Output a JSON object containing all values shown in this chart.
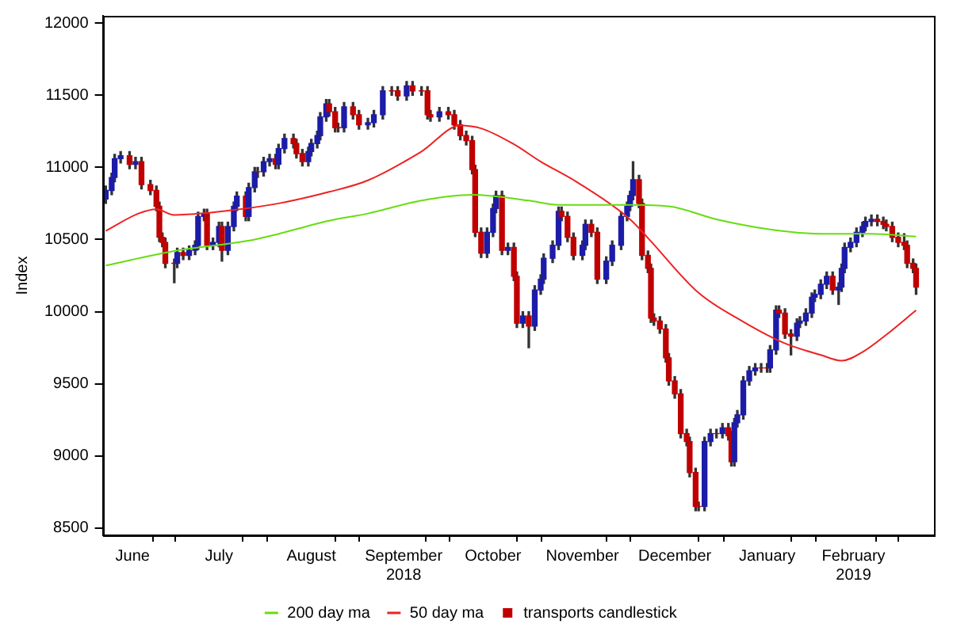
{
  "chart_data": {
    "type": "candlestick",
    "ylabel": "Index",
    "legend": "bottom",
    "grid": false,
    "xlim": [
      "2018-06-07",
      "2019-03-13"
    ],
    "ylim": [
      8450,
      12050
    ],
    "yticks": [
      8500,
      9000,
      9500,
      10000,
      10500,
      11000,
      11500,
      12000
    ],
    "xticks": [
      {
        "value": "2018-06-17",
        "label": "June"
      },
      {
        "value": "2018-07-01",
        "label": null
      },
      {
        "value": "2018-07-16",
        "label": "July"
      },
      {
        "value": "2018-08-01",
        "label": null
      },
      {
        "value": "2018-08-16",
        "label": "August"
      },
      {
        "value": "2018-09-01",
        "label": null
      },
      {
        "value": "2018-09-16",
        "label": "September\n2018"
      },
      {
        "value": "2018-10-01",
        "label": null
      },
      {
        "value": "2018-10-16",
        "label": "October"
      },
      {
        "value": "2018-11-01",
        "label": null
      },
      {
        "value": "2018-11-15",
        "label": "November"
      },
      {
        "value": "2018-12-01",
        "label": null
      },
      {
        "value": "2018-12-16",
        "label": "December"
      },
      {
        "value": "2019-01-01",
        "label": null
      },
      {
        "value": "2019-01-16",
        "label": "January"
      },
      {
        "value": "2019-02-01",
        "label": null
      },
      {
        "value": "2019-02-14",
        "label": "February\n2019"
      },
      {
        "value": "2019-03-01",
        "label": null
      }
    ],
    "series": [
      {
        "name": "200 day ma",
        "type": "line",
        "color": "#66dd11",
        "x": [
          "2018-06-08",
          "2018-07-01",
          "2018-07-28",
          "2018-08-22",
          "2018-09-04",
          "2018-09-22",
          "2018-10-09",
          "2018-10-28",
          "2018-11-07",
          "2018-12-01",
          "2018-12-14",
          "2018-12-30",
          "2019-01-17",
          "2019-02-03",
          "2019-02-20",
          "2019-03-07"
        ],
        "values": [
          10320,
          10420,
          10500,
          10630,
          10680,
          10770,
          10810,
          10770,
          10740,
          10740,
          10730,
          10640,
          10570,
          10540,
          10540,
          10520
        ]
      },
      {
        "name": "50 day ma",
        "type": "line",
        "color": "#ee2222",
        "x": [
          "2018-06-08",
          "2018-06-19",
          "2018-06-25",
          "2018-07-01",
          "2018-07-19",
          "2018-08-05",
          "2018-08-22",
          "2018-09-04",
          "2018-09-22",
          "2018-10-05",
          "2018-10-12",
          "2018-10-23",
          "2018-11-01",
          "2018-11-13",
          "2018-12-01",
          "2018-12-07",
          "2018-12-24",
          "2019-01-08",
          "2019-01-22",
          "2019-02-03",
          "2019-02-10",
          "2019-02-17",
          "2019-02-25",
          "2019-03-07"
        ],
        "values": [
          10560,
          10680,
          10710,
          10670,
          10700,
          10750,
          10830,
          10910,
          11110,
          11290,
          11270,
          11160,
          11040,
          10900,
          10640,
          10510,
          10130,
          9930,
          9780,
          9700,
          9660,
          9720,
          9840,
          10010
        ]
      },
      {
        "name": "transports candlestick",
        "color": "#c00000",
        "x": [
          "2018-06-08",
          "2018-06-10",
          "2018-06-11",
          "2018-06-13",
          "2018-06-16",
          "2018-06-18",
          "2018-06-20",
          "2018-06-23",
          "2018-06-25",
          "2018-06-26",
          "2018-06-27",
          "2018-06-28",
          "2018-07-01",
          "2018-07-02",
          "2018-07-04",
          "2018-07-06",
          "2018-07-08",
          "2018-07-09",
          "2018-07-11",
          "2018-07-12",
          "2018-07-14",
          "2018-07-16",
          "2018-07-17",
          "2018-07-19",
          "2018-07-21",
          "2018-07-22",
          "2018-07-25",
          "2018-07-26",
          "2018-07-28",
          "2018-07-29",
          "2018-07-31",
          "2018-08-02",
          "2018-08-04",
          "2018-08-05",
          "2018-08-07",
          "2018-08-10",
          "2018-08-11",
          "2018-08-13",
          "2018-08-15",
          "2018-08-16",
          "2018-08-18",
          "2018-08-19",
          "2018-08-21",
          "2018-08-22",
          "2018-08-24",
          "2018-08-25",
          "2018-08-27",
          "2018-08-30",
          "2018-09-01",
          "2018-09-04",
          "2018-09-06",
          "2018-09-09",
          "2018-09-12",
          "2018-09-14",
          "2018-09-17",
          "2018-09-19",
          "2018-09-22",
          "2018-09-24",
          "2018-09-25",
          "2018-09-28",
          "2018-10-01",
          "2018-10-03",
          "2018-10-05",
          "2018-10-07",
          "2018-10-09",
          "2018-10-10",
          "2018-10-12",
          "2018-10-14",
          "2018-10-16",
          "2018-10-17",
          "2018-10-19",
          "2018-10-21",
          "2018-10-23",
          "2018-10-24",
          "2018-10-26",
          "2018-10-28",
          "2018-10-30",
          "2018-11-01",
          "2018-11-02",
          "2018-11-05",
          "2018-11-07",
          "2018-11-08",
          "2018-11-10",
          "2018-11-12",
          "2018-11-15",
          "2018-11-16",
          "2018-11-18",
          "2018-11-20",
          "2018-11-23",
          "2018-11-25",
          "2018-11-28",
          "2018-11-30",
          "2018-12-01",
          "2018-12-02",
          "2018-12-04",
          "2018-12-05",
          "2018-12-07",
          "2018-12-08",
          "2018-12-09",
          "2018-12-11",
          "2018-12-13",
          "2018-12-14",
          "2018-12-16",
          "2018-12-18",
          "2018-12-20",
          "2018-12-21",
          "2018-12-23",
          "2018-12-24",
          "2018-12-26",
          "2018-12-28",
          "2018-12-30",
          "2019-01-01",
          "2019-01-03",
          "2019-01-04",
          "2019-01-05",
          "2019-01-06",
          "2019-01-08",
          "2019-01-10",
          "2019-01-12",
          "2019-01-14",
          "2019-01-16",
          "2019-01-17",
          "2019-01-19",
          "2019-01-20",
          "2019-01-22",
          "2019-01-24",
          "2019-01-26",
          "2019-01-27",
          "2019-01-29",
          "2019-01-31",
          "2019-02-01",
          "2019-02-03",
          "2019-02-05",
          "2019-02-07",
          "2019-02-09",
          "2019-02-10",
          "2019-02-11",
          "2019-02-13",
          "2019-02-15",
          "2019-02-17",
          "2019-02-18",
          "2019-02-20",
          "2019-02-22",
          "2019-02-24",
          "2019-02-25",
          "2019-02-27",
          "2019-03-01",
          "2019-03-03",
          "2019-03-04",
          "2019-03-06",
          "2019-03-07"
        ],
        "ohlc": [
          [
            10780,
            10870,
            10750,
            10840
          ],
          [
            10840,
            10960,
            10810,
            10930
          ],
          [
            10930,
            11090,
            10900,
            11060
          ],
          [
            11060,
            11110,
            11030,
            11080
          ],
          [
            11080,
            11110,
            10990,
            11020
          ],
          [
            11020,
            11070,
            10990,
            11040
          ],
          [
            11040,
            11070,
            10850,
            10880
          ],
          [
            10880,
            10910,
            10810,
            10840
          ],
          [
            10840,
            10870,
            10700,
            10730
          ],
          [
            10730,
            10760,
            10485,
            10515
          ],
          [
            10515,
            10545,
            10450,
            10480
          ],
          [
            10480,
            10510,
            10305,
            10335
          ],
          [
            10335,
            10365,
            10200,
            10335
          ],
          [
            10335,
            10440,
            10305,
            10410
          ],
          [
            10410,
            10440,
            10360,
            10390
          ],
          [
            10390,
            10455,
            10360,
            10425
          ],
          [
            10425,
            10490,
            10395,
            10460
          ],
          [
            10460,
            10690,
            10430,
            10660
          ],
          [
            10660,
            10710,
            10630,
            10680
          ],
          [
            10680,
            10710,
            10430,
            10460
          ],
          [
            10460,
            10510,
            10430,
            10480
          ],
          [
            10480,
            10620,
            10450,
            10590
          ],
          [
            10590,
            10620,
            10350,
            10425
          ],
          [
            10425,
            10620,
            10395,
            10590
          ],
          [
            10590,
            10760,
            10560,
            10730
          ],
          [
            10730,
            10830,
            10700,
            10800
          ],
          [
            10800,
            10830,
            10630,
            10660
          ],
          [
            10660,
            10890,
            10630,
            10860
          ],
          [
            10860,
            11000,
            10830,
            10970
          ],
          [
            10970,
            11000,
            10930,
            10970
          ],
          [
            10970,
            11070,
            10940,
            11040
          ],
          [
            11040,
            11090,
            11010,
            11060
          ],
          [
            11060,
            11090,
            10990,
            11020
          ],
          [
            11020,
            11160,
            10990,
            11130
          ],
          [
            11130,
            11230,
            11100,
            11200
          ],
          [
            11200,
            11230,
            11135,
            11165
          ],
          [
            11165,
            11195,
            11065,
            11095
          ],
          [
            11095,
            11125,
            11010,
            11040
          ],
          [
            11040,
            11140,
            11010,
            11110
          ],
          [
            11110,
            11195,
            11080,
            11165
          ],
          [
            11165,
            11250,
            11135,
            11220
          ],
          [
            11220,
            11380,
            11190,
            11350
          ],
          [
            11350,
            11470,
            11320,
            11440
          ],
          [
            11440,
            11470,
            11355,
            11385
          ],
          [
            11385,
            11415,
            11245,
            11275
          ],
          [
            11275,
            11305,
            11245,
            11275
          ],
          [
            11275,
            11450,
            11245,
            11420
          ],
          [
            11420,
            11450,
            11335,
            11365
          ],
          [
            11365,
            11395,
            11265,
            11295
          ],
          [
            11295,
            11340,
            11265,
            11310
          ],
          [
            11310,
            11395,
            11280,
            11365
          ],
          [
            11365,
            11560,
            11335,
            11530
          ],
          [
            11530,
            11560,
            11500,
            11530
          ],
          [
            11530,
            11560,
            11465,
            11495
          ],
          [
            11495,
            11595,
            11465,
            11565
          ],
          [
            11565,
            11595,
            11500,
            11530
          ],
          [
            11530,
            11560,
            11500,
            11530
          ],
          [
            11530,
            11560,
            11335,
            11365
          ],
          [
            11365,
            11395,
            11320,
            11350
          ],
          [
            11350,
            11415,
            11320,
            11385
          ],
          [
            11385,
            11415,
            11335,
            11365
          ],
          [
            11365,
            11395,
            11265,
            11295
          ],
          [
            11295,
            11325,
            11190,
            11220
          ],
          [
            11220,
            11250,
            11155,
            11185
          ],
          [
            11185,
            11215,
            10955,
            10985
          ],
          [
            10985,
            11015,
            10520,
            10550
          ],
          [
            10550,
            10580,
            10375,
            10405
          ],
          [
            10405,
            10580,
            10375,
            10550
          ],
          [
            10550,
            10745,
            10520,
            10715
          ],
          [
            10715,
            10835,
            10685,
            10805
          ],
          [
            10805,
            10835,
            10395,
            10425
          ],
          [
            10425,
            10475,
            10395,
            10445
          ],
          [
            10445,
            10475,
            10215,
            10245
          ],
          [
            10245,
            10275,
            9890,
            9920
          ],
          [
            9920,
            10000,
            9890,
            9970
          ],
          [
            9970,
            10000,
            9750,
            9900
          ],
          [
            9900,
            10180,
            9870,
            10150
          ],
          [
            10150,
            10255,
            10120,
            10225
          ],
          [
            10225,
            10400,
            10195,
            10370
          ],
          [
            10370,
            10490,
            10340,
            10460
          ],
          [
            10460,
            10725,
            10430,
            10695
          ],
          [
            10695,
            10725,
            10630,
            10660
          ],
          [
            10660,
            10690,
            10485,
            10515
          ],
          [
            10515,
            10545,
            10360,
            10390
          ],
          [
            10390,
            10490,
            10360,
            10460
          ],
          [
            10460,
            10635,
            10430,
            10605
          ],
          [
            10605,
            10635,
            10520,
            10550
          ],
          [
            10550,
            10580,
            10195,
            10225
          ],
          [
            10225,
            10380,
            10195,
            10350
          ],
          [
            10350,
            10490,
            10320,
            10460
          ],
          [
            10460,
            10690,
            10430,
            10660
          ],
          [
            10660,
            10760,
            10630,
            10730
          ],
          [
            10730,
            10835,
            10700,
            10805
          ],
          [
            10805,
            11040,
            10775,
            10915
          ],
          [
            10915,
            10945,
            10720,
            10750
          ],
          [
            10750,
            10780,
            10360,
            10390
          ],
          [
            10390,
            10420,
            10270,
            10300
          ],
          [
            10300,
            10330,
            9925,
            9955
          ],
          [
            9955,
            9985,
            9905,
            9935
          ],
          [
            9935,
            9965,
            9850,
            9880
          ],
          [
            9880,
            9910,
            9650,
            9680
          ],
          [
            9680,
            9710,
            9490,
            9520
          ],
          [
            9520,
            9550,
            9400,
            9430
          ],
          [
            9430,
            9460,
            9125,
            9155
          ],
          [
            9155,
            9185,
            9070,
            9100
          ],
          [
            9100,
            9130,
            8855,
            8885
          ],
          [
            8885,
            8915,
            8620,
            8650
          ],
          [
            8650,
            8680,
            8620,
            8650
          ],
          [
            8650,
            9130,
            8620,
            9100
          ],
          [
            9100,
            9185,
            9070,
            9155
          ],
          [
            9155,
            9185,
            9125,
            9155
          ],
          [
            9155,
            9225,
            9125,
            9195
          ],
          [
            9195,
            9225,
            9110,
            9140
          ],
          [
            9140,
            9170,
            8930,
            8960
          ],
          [
            8960,
            9260,
            8930,
            9230
          ],
          [
            9230,
            9315,
            9200,
            9285
          ],
          [
            9285,
            9550,
            9255,
            9520
          ],
          [
            9520,
            9620,
            9490,
            9590
          ],
          [
            9590,
            9640,
            9560,
            9610
          ],
          [
            9610,
            9640,
            9580,
            9610
          ],
          [
            9610,
            9640,
            9580,
            9610
          ],
          [
            9610,
            9765,
            9580,
            9735
          ],
          [
            9735,
            10040,
            9705,
            10010
          ],
          [
            10010,
            10040,
            9960,
            9990
          ],
          [
            9990,
            10020,
            9815,
            9845
          ],
          [
            9845,
            9875,
            9700,
            9830
          ],
          [
            9830,
            9950,
            9800,
            9920
          ],
          [
            9920,
            9965,
            9890,
            9935
          ],
          [
            9935,
            10020,
            9905,
            9990
          ],
          [
            9990,
            10130,
            9960,
            10100
          ],
          [
            10100,
            10150,
            10070,
            10120
          ],
          [
            10120,
            10220,
            10090,
            10190
          ],
          [
            10190,
            10275,
            10160,
            10245
          ],
          [
            10245,
            10275,
            10120,
            10150
          ],
          [
            10150,
            10200,
            10050,
            10170
          ],
          [
            10170,
            10330,
            10140,
            10300
          ],
          [
            10300,
            10475,
            10270,
            10445
          ],
          [
            10445,
            10510,
            10415,
            10480
          ],
          [
            10480,
            10580,
            10450,
            10550
          ],
          [
            10550,
            10620,
            10520,
            10590
          ],
          [
            10590,
            10655,
            10560,
            10625
          ],
          [
            10625,
            10670,
            10595,
            10640
          ],
          [
            10640,
            10670,
            10595,
            10625
          ],
          [
            10625,
            10655,
            10575,
            10605
          ],
          [
            10605,
            10635,
            10560,
            10590
          ],
          [
            10590,
            10620,
            10485,
            10515
          ],
          [
            10515,
            10545,
            10450,
            10480
          ],
          [
            10480,
            10540,
            10430,
            10460
          ],
          [
            10460,
            10490,
            10305,
            10335
          ],
          [
            10335,
            10365,
            10270,
            10300
          ],
          [
            10300,
            10330,
            10120,
            10170
          ]
        ],
        "colors": [
          "#1c1ca8",
          "#1c1ca8",
          "#1c1ca8",
          "#1c1ca8",
          "#c00000",
          "#1c1ca8",
          "#c00000",
          "#c00000",
          "#c00000",
          "#c00000",
          "#c00000",
          "#c00000",
          "#c00000",
          "#1c1ca8",
          "#c00000",
          "#1c1ca8",
          "#1c1ca8",
          "#1c1ca8",
          "#1c1ca8",
          "#c00000",
          "#1c1ca8",
          "#1c1ca8",
          "#c00000",
          "#1c1ca8",
          "#1c1ca8",
          "#1c1ca8",
          "#c00000",
          "#1c1ca8",
          "#1c1ca8",
          "#c00000",
          "#1c1ca8",
          "#1c1ca8",
          "#c00000",
          "#1c1ca8",
          "#1c1ca8",
          "#c00000",
          "#c00000",
          "#c00000",
          "#1c1ca8",
          "#1c1ca8",
          "#1c1ca8",
          "#1c1ca8",
          "#1c1ca8",
          "#c00000",
          "#c00000",
          "#c00000",
          "#1c1ca8",
          "#c00000",
          "#c00000",
          "#1c1ca8",
          "#1c1ca8",
          "#1c1ca8",
          "#c00000",
          "#c00000",
          "#1c1ca8",
          "#c00000",
          "#c00000",
          "#c00000",
          "#c00000",
          "#1c1ca8",
          "#c00000",
          "#c00000",
          "#c00000",
          "#c00000",
          "#c00000",
          "#c00000",
          "#c00000",
          "#1c1ca8",
          "#1c1ca8",
          "#1c1ca8",
          "#c00000",
          "#1c1ca8",
          "#c00000",
          "#c00000",
          "#1c1ca8",
          "#c00000",
          "#1c1ca8",
          "#1c1ca8",
          "#1c1ca8",
          "#1c1ca8",
          "#1c1ca8",
          "#c00000",
          "#c00000",
          "#c00000",
          "#1c1ca8",
          "#1c1ca8",
          "#c00000",
          "#c00000",
          "#1c1ca8",
          "#1c1ca8",
          "#1c1ca8",
          "#1c1ca8",
          "#1c1ca8",
          "#1c1ca8",
          "#c00000",
          "#c00000",
          "#c00000",
          "#c00000",
          "#c00000",
          "#c00000",
          "#c00000",
          "#c00000",
          "#c00000",
          "#c00000",
          "#c00000",
          "#c00000",
          "#c00000",
          "#c00000",
          "#1c1ca8",
          "#1c1ca8",
          "#c00000",
          "#1c1ca8",
          "#c00000",
          "#c00000",
          "#1c1ca8",
          "#1c1ca8",
          "#1c1ca8",
          "#1c1ca8",
          "#1c1ca8",
          "#c00000",
          "#c00000",
          "#1c1ca8",
          "#1c1ca8",
          "#c00000",
          "#c00000",
          "#c00000",
          "#1c1ca8",
          "#1c1ca8",
          "#1c1ca8",
          "#1c1ca8",
          "#1c1ca8",
          "#1c1ca8",
          "#1c1ca8",
          "#c00000",
          "#1c1ca8",
          "#1c1ca8",
          "#1c1ca8",
          "#1c1ca8",
          "#1c1ca8",
          "#1c1ca8",
          "#1c1ca8",
          "#1c1ca8",
          "#c00000",
          "#c00000",
          "#c00000",
          "#c00000",
          "#c00000",
          "#c00000",
          "#c00000",
          "#c00000",
          "#c00000"
        ]
      }
    ]
  }
}
